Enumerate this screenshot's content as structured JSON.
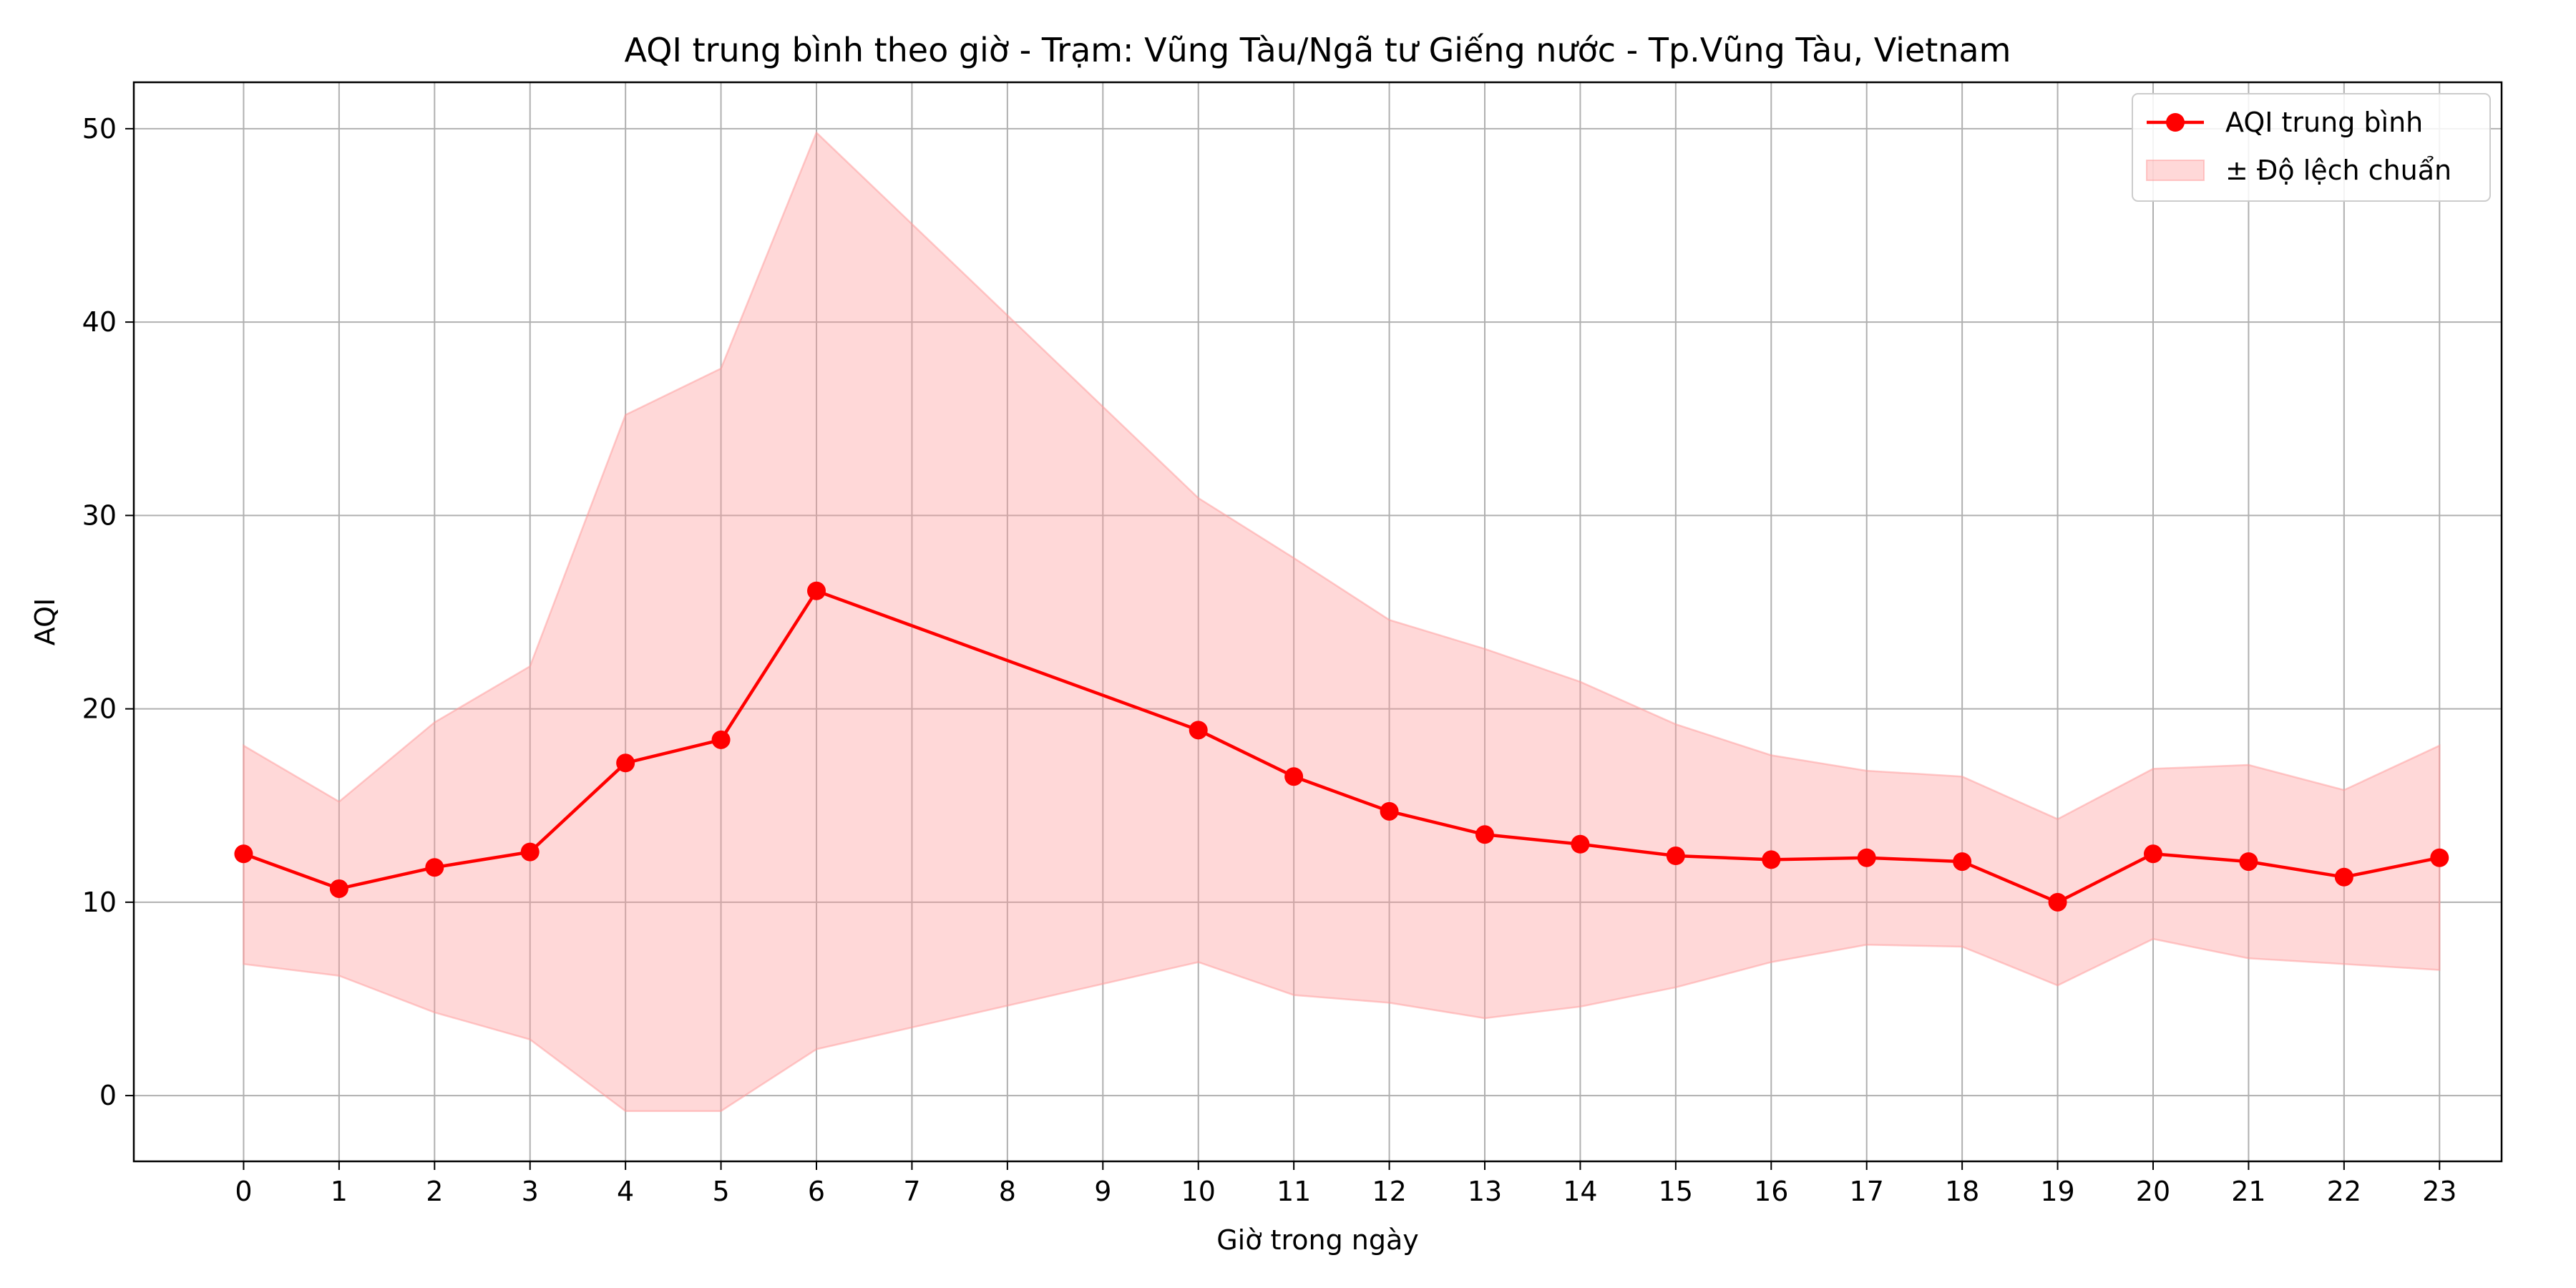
{
  "chart_data": {
    "type": "line",
    "title": "AQI trung bình theo giờ - Trạm: Vũng Tàu/Ngã tư Giếng nước - Tp.Vũng Tàu, Vietnam",
    "xlabel": "Giờ trong ngày",
    "ylabel": "AQI",
    "x": [
      0,
      1,
      2,
      3,
      4,
      5,
      6,
      10,
      11,
      12,
      13,
      14,
      15,
      16,
      17,
      18,
      19,
      20,
      21,
      22,
      23
    ],
    "xticks": [
      0,
      1,
      2,
      3,
      4,
      5,
      6,
      7,
      8,
      9,
      10,
      11,
      12,
      13,
      14,
      15,
      16,
      17,
      18,
      19,
      20,
      21,
      22,
      23
    ],
    "yticks": [
      0,
      10,
      20,
      30,
      40,
      50
    ],
    "xlim": [
      -1.15,
      23.65
    ],
    "ylim": [
      -3.4,
      52.4
    ],
    "grid": true,
    "legend_position": "top-right",
    "series": [
      {
        "name": "AQI trung bình",
        "kind": "line",
        "color": "#ff0000",
        "values": [
          12.5,
          10.7,
          11.8,
          12.6,
          17.2,
          18.4,
          26.1,
          18.9,
          16.5,
          14.7,
          13.5,
          13.0,
          12.4,
          12.2,
          12.3,
          12.1,
          10.0,
          12.5,
          12.1,
          11.3,
          12.3
        ]
      },
      {
        "name": "± Độ lệch chuẩn",
        "kind": "band",
        "color": "#ff9999",
        "upper": [
          18.1,
          15.2,
          19.3,
          22.2,
          35.2,
          37.6,
          49.8,
          30.9,
          27.8,
          24.6,
          23.1,
          21.4,
          19.2,
          17.6,
          16.8,
          16.5,
          14.3,
          16.9,
          17.1,
          15.8,
          18.1
        ],
        "lower": [
          6.8,
          6.2,
          4.3,
          2.9,
          -0.8,
          -0.8,
          2.4,
          6.9,
          5.2,
          4.8,
          4.0,
          4.6,
          5.6,
          6.9,
          7.8,
          7.7,
          5.7,
          8.1,
          7.1,
          6.8,
          6.5
        ]
      }
    ]
  }
}
